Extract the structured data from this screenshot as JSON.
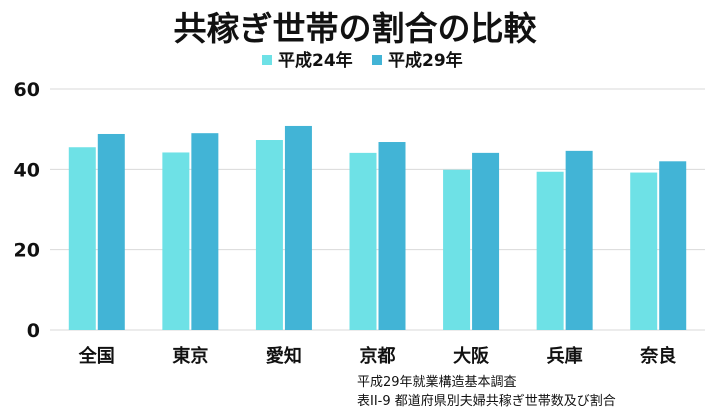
{
  "chart_data": {
    "type": "bar",
    "title": "共稼ぎ世帯の割合の比較",
    "categories": [
      "全国",
      "東京",
      "愛知",
      "京都",
      "大阪",
      "兵庫",
      "奈良"
    ],
    "series": [
      {
        "name": "平成24年",
        "color": "#6ee1e6",
        "values": [
          45.5,
          44.2,
          47.3,
          44.1,
          39.9,
          39.4,
          39.2
        ]
      },
      {
        "name": "平成29年",
        "color": "#42b4d6",
        "values": [
          48.8,
          49.0,
          50.8,
          46.8,
          44.1,
          44.6,
          42.0
        ]
      }
    ],
    "xlabel": "",
    "ylabel": "",
    "ylim": [
      0,
      60
    ],
    "yticks": [
      0,
      20,
      40,
      60
    ],
    "grid": true,
    "legend": "top-center",
    "source_lines": [
      "平成29年就業構造基本調査",
      "表II-9 都道府県別夫婦共稼ぎ世帯数及び割合"
    ]
  }
}
